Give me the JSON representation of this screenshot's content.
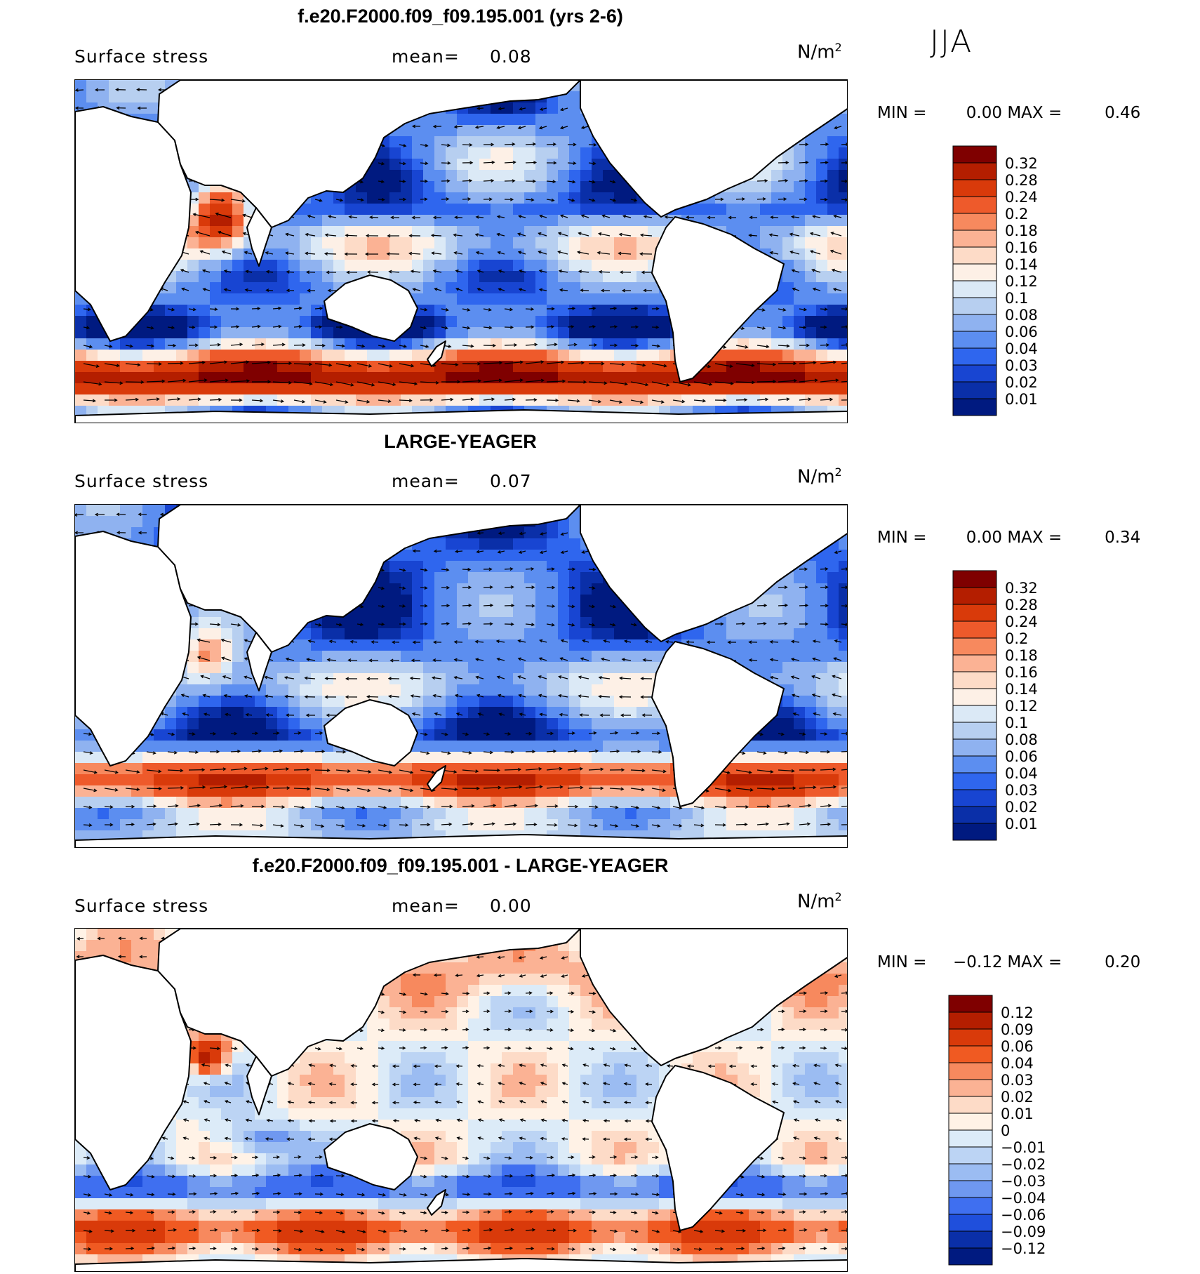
{
  "season": "JJA",
  "units_base": "N/m",
  "units_exp": "2",
  "colors": {
    "land": "#ffffff",
    "coast": "#000000",
    "arrow": "#000000"
  },
  "chart_data": [
    {
      "type": "heatmap",
      "title": "f.e20.F2000.f09_f09.195.001 (yrs 2-6)",
      "field_label": "Surface stress",
      "mean_label": "mean=",
      "mean_value": "0.08",
      "min_label": "MIN =",
      "min_value": "0.00",
      "max_label": "MAX =",
      "max_value": "0.46",
      "colorbar": [
        "0.32",
        "0.28",
        "0.24",
        "0.2",
        "0.18",
        "0.16",
        "0.14",
        "0.12",
        "0.1",
        "0.08",
        "0.06",
        "0.04",
        "0.03",
        "0.02",
        "0.01"
      ],
      "colors": [
        "#7f0000",
        "#b41e00",
        "#d93a0a",
        "#ee5a2b",
        "#f7895e",
        "#fbb294",
        "#fddbc7",
        "#fdf0e6",
        "#dbe9f6",
        "#b7cff0",
        "#8fb2f0",
        "#5c8ef0",
        "#2f66ee",
        "#1845d2",
        "#0a2fa8",
        "#001a80"
      ]
    },
    {
      "type": "heatmap",
      "title": "LARGE-YEAGER",
      "field_label": "Surface stress",
      "mean_label": "mean=",
      "mean_value": "0.07",
      "min_label": "MIN =",
      "min_value": "0.00",
      "max_label": "MAX =",
      "max_value": "0.34",
      "colorbar": [
        "0.32",
        "0.28",
        "0.24",
        "0.2",
        "0.18",
        "0.16",
        "0.14",
        "0.12",
        "0.1",
        "0.08",
        "0.06",
        "0.04",
        "0.03",
        "0.02",
        "0.01"
      ],
      "colors": [
        "#7f0000",
        "#b41e00",
        "#d93a0a",
        "#ee5a2b",
        "#f7895e",
        "#fbb294",
        "#fddbc7",
        "#fdf0e6",
        "#dbe9f6",
        "#b7cff0",
        "#8fb2f0",
        "#5c8ef0",
        "#2f66ee",
        "#1845d2",
        "#0a2fa8",
        "#001a80"
      ]
    },
    {
      "type": "heatmap",
      "title": "f.e20.F2000.f09_f09.195.001 - LARGE-YEAGER",
      "field_label": "Surface stress",
      "mean_label": "mean=",
      "mean_value": "0.00",
      "min_label": "MIN =",
      "min_value": "−0.12",
      "max_label": "MAX =",
      "max_value": "0.20",
      "colorbar": [
        "0.12",
        "0.09",
        "0.06",
        "0.04",
        "0.03",
        "0.02",
        "0.01",
        "0",
        "−0.01",
        "−0.02",
        "−0.03",
        "−0.04",
        "−0.06",
        "−0.09",
        "−0.12"
      ],
      "colors": [
        "#7f0000",
        "#b41e00",
        "#d93a0a",
        "#f05a22",
        "#f7895e",
        "#fbb294",
        "#fddbc7",
        "#fff2e6",
        "#dcebf8",
        "#bcd4f4",
        "#9bbcf2",
        "#6f98f0",
        "#3f6ff0",
        "#1f4fdc",
        "#0a2fa8",
        "#001a80"
      ]
    }
  ]
}
